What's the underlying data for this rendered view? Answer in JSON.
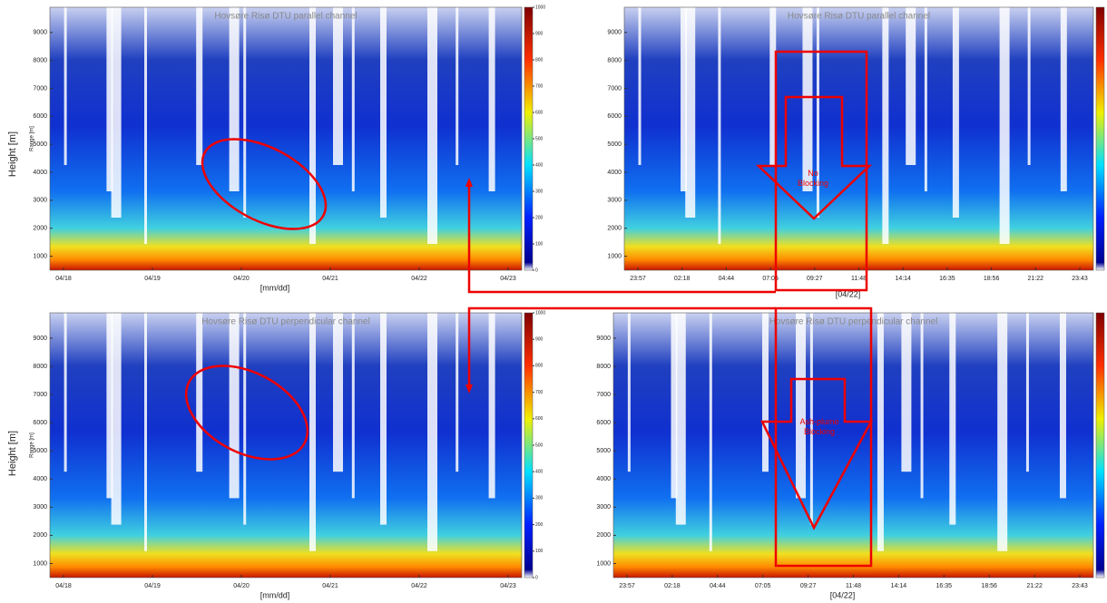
{
  "outer_labels": {
    "y_top": "Height [m]",
    "y_bottom": "Height [m]"
  },
  "chart_data": [
    {
      "type": "heatmap",
      "title": "Hovsøre Risø DTU parallel channel",
      "y_label": "Range [m]",
      "x_label": "[mm/dd]",
      "categories": [
        "04/18",
        "04/19",
        "04/20",
        "04/21",
        "04/22",
        "04/23"
      ],
      "ylim": [
        500,
        9900
      ],
      "yticks": [
        1000,
        2000,
        3000,
        4000,
        5000,
        6000,
        7000,
        8000,
        9000
      ],
      "clim": [
        0,
        1000
      ],
      "cticks": [
        0,
        100,
        200,
        300,
        400,
        500,
        600,
        700,
        800,
        900,
        1000
      ]
    },
    {
      "type": "heatmap",
      "title": "Hovsøre Risø DTU parallel channel",
      "x_label": "[04/22]",
      "annotation": "No Blocking",
      "categories": [
        "23:57",
        "02:18",
        "04:44",
        "07:05",
        "09:27",
        "11:48",
        "14:14",
        "16:35",
        "18:56",
        "21:22",
        "23:43"
      ],
      "ylim": [
        500,
        9900
      ],
      "yticks": [
        1000,
        2000,
        3000,
        4000,
        5000,
        6000,
        7000,
        8000,
        9000
      ]
    },
    {
      "type": "heatmap",
      "title": "Hovsøre Risø DTU perpendicular channel",
      "y_label": "Range [m]",
      "x_label": "[mm/dd]",
      "categories": [
        "04/18",
        "04/19",
        "04/20",
        "04/21",
        "04/22",
        "04/23"
      ],
      "ylim": [
        500,
        9900
      ],
      "yticks": [
        1000,
        2000,
        3000,
        4000,
        5000,
        6000,
        7000,
        8000,
        9000
      ],
      "clim": [
        0,
        1000
      ],
      "cticks": [
        0,
        100,
        200,
        300,
        400,
        500,
        600,
        700,
        800,
        900,
        1000
      ]
    },
    {
      "type": "heatmap",
      "title": "Hovsøre Risø DTU perpendicular channel",
      "x_label": "[04/22]",
      "annotation": "Ash-plume Blocking",
      "categories": [
        "23:57",
        "02:18",
        "04:44",
        "07:05",
        "09:27",
        "11:48",
        "14:14",
        "16:35",
        "18:56",
        "21:22",
        "23:43"
      ],
      "ylim": [
        500,
        9900
      ],
      "yticks": [
        1000,
        2000,
        3000,
        4000,
        5000,
        6000,
        7000,
        8000,
        9000
      ]
    }
  ]
}
